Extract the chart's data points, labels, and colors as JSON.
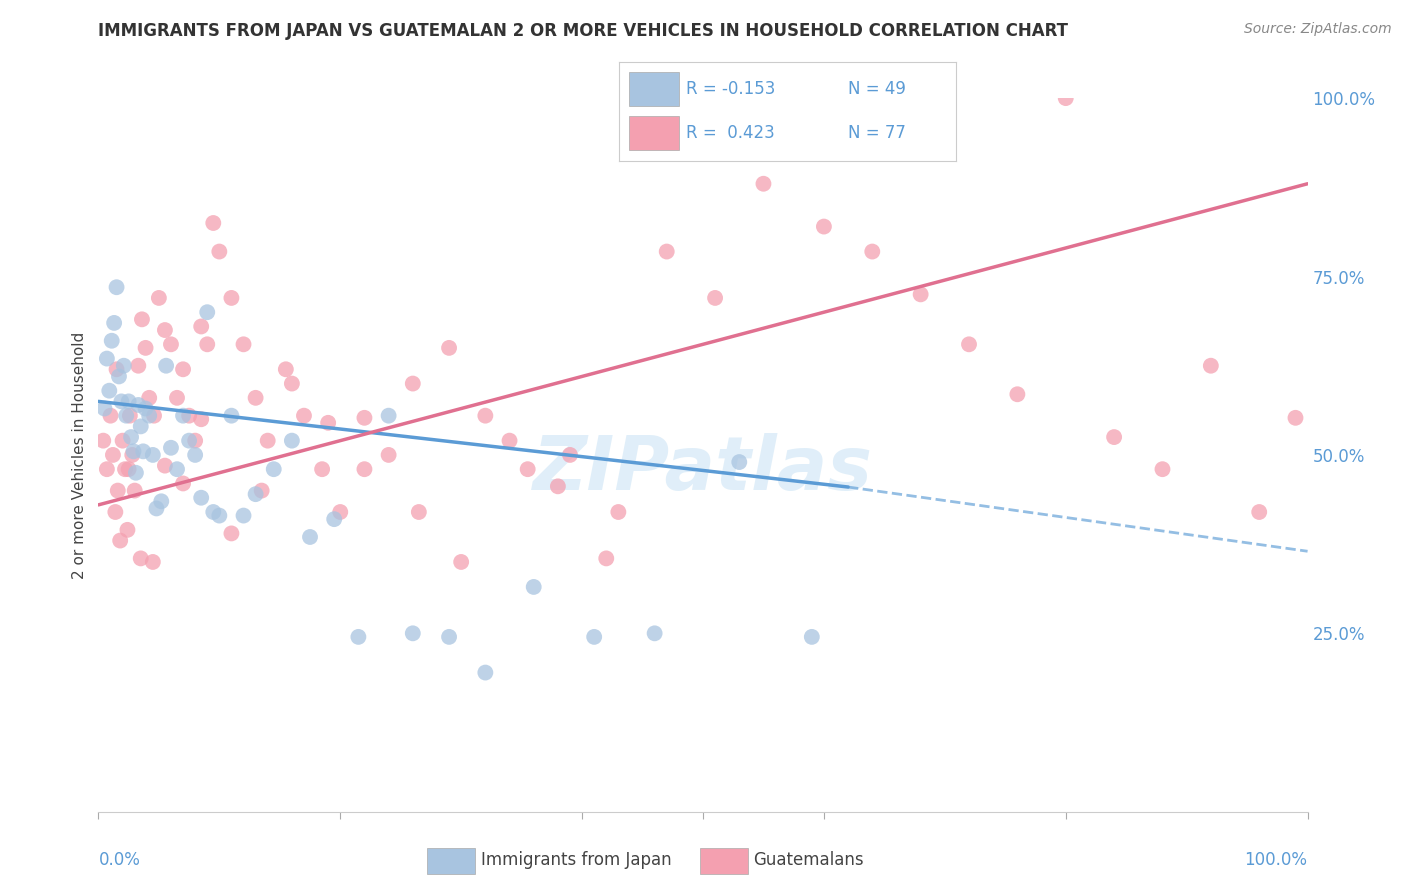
{
  "title": "IMMIGRANTS FROM JAPAN VS GUATEMALAN 2 OR MORE VEHICLES IN HOUSEHOLD CORRELATION CHART",
  "source": "Source: ZipAtlas.com",
  "ylabel": "2 or more Vehicles in Household",
  "color_japan": "#a8c4e0",
  "color_guatemala": "#f4a0b0",
  "color_japan_line": "#5b9bd5",
  "color_guatemala_line": "#e07090",
  "color_title": "#333333",
  "color_source": "#888888",
  "color_right_ticks": "#5b9bd5",
  "watermark_color": "#cce4f5",
  "xlim": [
    0,
    1
  ],
  "ylim": [
    0,
    1
  ],
  "ytick_values": [
    0.25,
    0.5,
    0.75,
    1.0
  ],
  "ytick_labels": [
    "25.0%",
    "50.0%",
    "75.0%",
    "100.0%"
  ],
  "japan_line_x": [
    0.0,
    0.72,
    1.0
  ],
  "japan_line_y": [
    0.575,
    0.455,
    0.395
  ],
  "japan_line_solid_end": 0.72,
  "guatemala_line_x": [
    0.0,
    1.0
  ],
  "guatemala_line_y": [
    0.43,
    0.88
  ],
  "japan_points_x": [
    0.005,
    0.007,
    0.009,
    0.011,
    0.013,
    0.015,
    0.017,
    0.019,
    0.021,
    0.023,
    0.025,
    0.027,
    0.029,
    0.031,
    0.033,
    0.035,
    0.037,
    0.039,
    0.042,
    0.045,
    0.048,
    0.052,
    0.056,
    0.06,
    0.065,
    0.07,
    0.075,
    0.08,
    0.085,
    0.09,
    0.095,
    0.1,
    0.11,
    0.12,
    0.13,
    0.145,
    0.16,
    0.175,
    0.195,
    0.215,
    0.24,
    0.26,
    0.29,
    0.32,
    0.36,
    0.41,
    0.46,
    0.53,
    0.59
  ],
  "japan_points_y": [
    0.565,
    0.635,
    0.59,
    0.66,
    0.685,
    0.735,
    0.61,
    0.575,
    0.625,
    0.555,
    0.575,
    0.525,
    0.505,
    0.475,
    0.57,
    0.54,
    0.505,
    0.565,
    0.555,
    0.5,
    0.425,
    0.435,
    0.625,
    0.51,
    0.48,
    0.555,
    0.52,
    0.5,
    0.44,
    0.7,
    0.42,
    0.415,
    0.555,
    0.415,
    0.445,
    0.48,
    0.52,
    0.385,
    0.41,
    0.245,
    0.555,
    0.25,
    0.245,
    0.195,
    0.315,
    0.245,
    0.25,
    0.49,
    0.245
  ],
  "guatemala_points_x": [
    0.004,
    0.007,
    0.01,
    0.012,
    0.014,
    0.016,
    0.018,
    0.02,
    0.022,
    0.024,
    0.026,
    0.028,
    0.03,
    0.033,
    0.036,
    0.039,
    0.042,
    0.046,
    0.05,
    0.055,
    0.06,
    0.065,
    0.07,
    0.075,
    0.08,
    0.085,
    0.09,
    0.095,
    0.1,
    0.11,
    0.12,
    0.13,
    0.14,
    0.155,
    0.17,
    0.185,
    0.2,
    0.22,
    0.24,
    0.265,
    0.29,
    0.32,
    0.355,
    0.39,
    0.43,
    0.47,
    0.51,
    0.55,
    0.6,
    0.64,
    0.68,
    0.72,
    0.76,
    0.8,
    0.84,
    0.88,
    0.92,
    0.96,
    0.99,
    0.015,
    0.025,
    0.035,
    0.045,
    0.055,
    0.07,
    0.085,
    0.11,
    0.135,
    0.16,
    0.19,
    0.22,
    0.26,
    0.3,
    0.34,
    0.38,
    0.42
  ],
  "guatemala_points_y": [
    0.52,
    0.48,
    0.555,
    0.5,
    0.42,
    0.45,
    0.38,
    0.52,
    0.48,
    0.395,
    0.555,
    0.5,
    0.45,
    0.625,
    0.69,
    0.65,
    0.58,
    0.555,
    0.72,
    0.675,
    0.655,
    0.58,
    0.62,
    0.555,
    0.52,
    0.68,
    0.655,
    0.825,
    0.785,
    0.72,
    0.655,
    0.58,
    0.52,
    0.62,
    0.555,
    0.48,
    0.42,
    0.552,
    0.5,
    0.42,
    0.65,
    0.555,
    0.48,
    0.5,
    0.42,
    0.785,
    0.72,
    0.88,
    0.82,
    0.785,
    0.725,
    0.655,
    0.585,
    1.0,
    0.525,
    0.48,
    0.625,
    0.42,
    0.552,
    0.62,
    0.48,
    0.355,
    0.35,
    0.485,
    0.46,
    0.55,
    0.39,
    0.45,
    0.6,
    0.545,
    0.48,
    0.6,
    0.35,
    0.52,
    0.456,
    0.355
  ]
}
